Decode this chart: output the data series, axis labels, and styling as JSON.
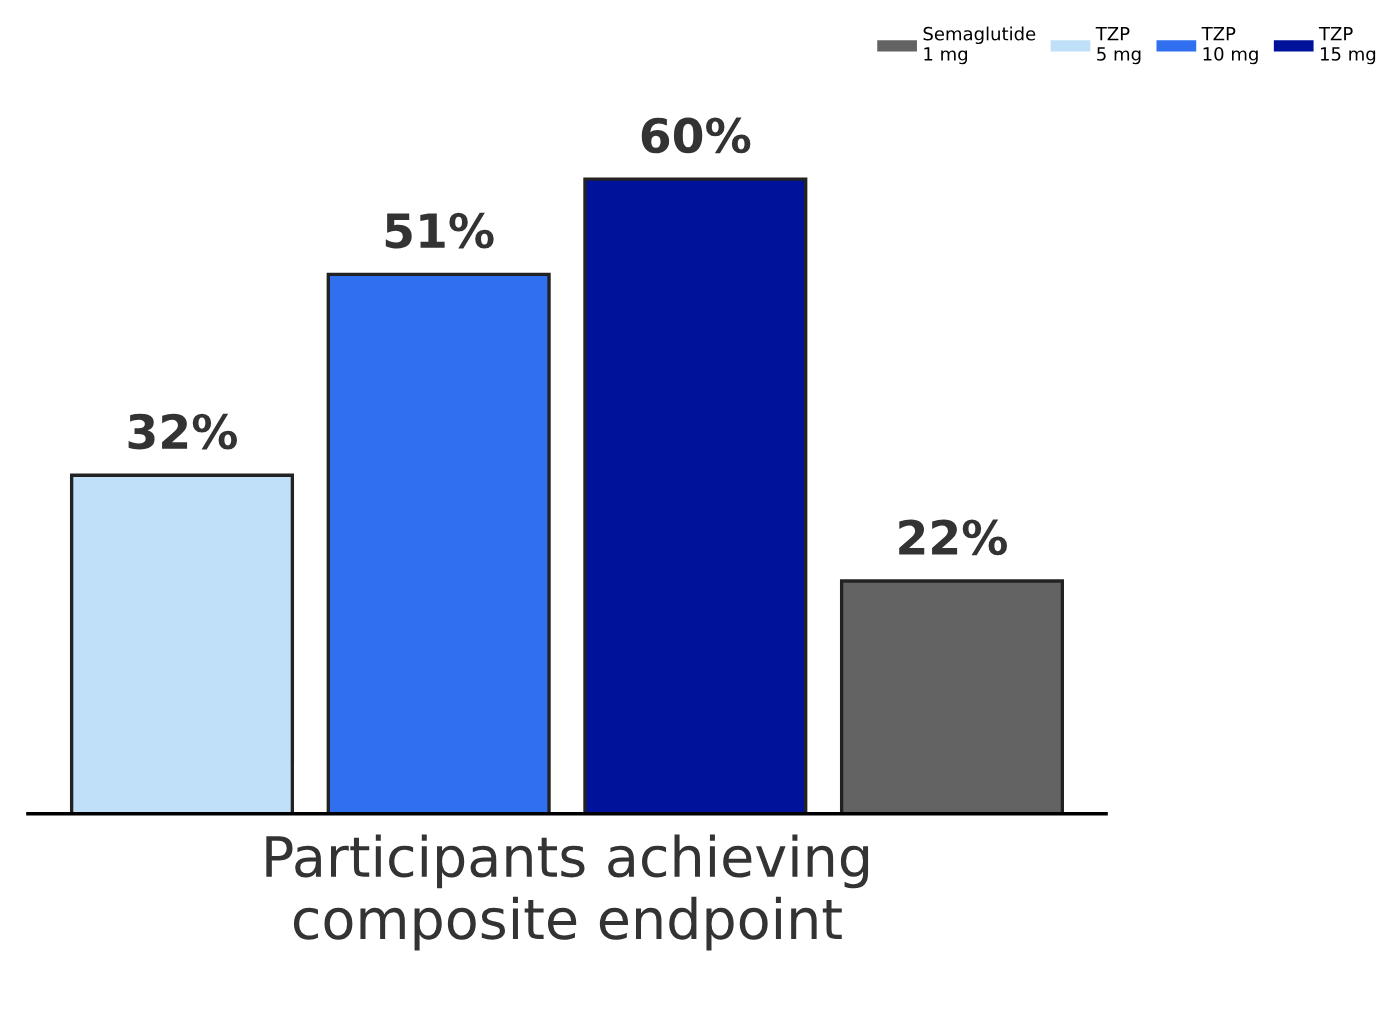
{
  "chart_data": {
    "type": "bar",
    "categories": [
      null,
      null,
      null,
      null
    ],
    "xlabel": "Participants achieving\ncomposite endpoint",
    "series": [
      {
        "name": "Semaglutide\n1 mg",
        "color": "#636363",
        "values": [
          null,
          null,
          null,
          22
        ],
        "value_labels": [
          null,
          null,
          null,
          "22%"
        ]
      },
      {
        "name": "TZP\n5 mg",
        "color": "#bfe0f8",
        "values": [
          32,
          null,
          null,
          null
        ],
        "value_labels": [
          "32%",
          null,
          null,
          null
        ]
      },
      {
        "name": "TZP\n10 mg",
        "color": "#2f6ff0",
        "values": [
          null,
          51,
          null,
          null
        ],
        "value_labels": [
          null,
          "51%",
          null,
          null
        ]
      },
      {
        "name": "TZP\n15 mg",
        "color": "#00129a",
        "values": [
          null,
          null,
          60,
          null
        ],
        "value_labels": [
          null,
          null,
          "60%",
          null
        ]
      }
    ],
    "stacked": true,
    "legend": "top right",
    "grid": false
  }
}
